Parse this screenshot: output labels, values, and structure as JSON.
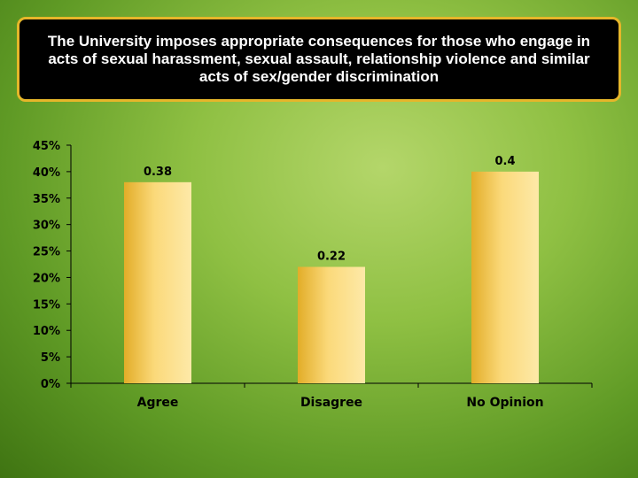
{
  "chart_data": {
    "type": "bar",
    "title": "The University imposes appropriate consequences for those who engage in acts of sexual harassment, sexual assault, relationship violence and similar acts of sex/gender discrimination",
    "categories": [
      "Agree",
      "Disagree",
      "No Opinion"
    ],
    "values": [
      0.38,
      0.22,
      0.4
    ],
    "data_labels": [
      "0.38",
      "0.22",
      "0.4"
    ],
    "y_ticks": [
      "0%",
      "5%",
      "10%",
      "15%",
      "20%",
      "25%",
      "30%",
      "35%",
      "40%",
      "45%"
    ],
    "ylim": [
      0,
      0.45
    ],
    "xlabel": "",
    "ylabel": "",
    "grid": false,
    "legend": "none",
    "colors": {
      "bar_light": "#fde9a8",
      "bar_dark": "#e2ad28",
      "title_bg": "#000000",
      "title_border": "#e6b62a"
    }
  }
}
